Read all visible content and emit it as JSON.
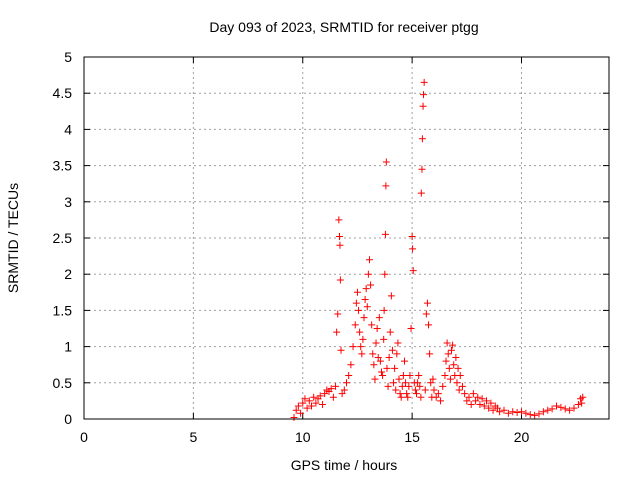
{
  "chart_data": {
    "type": "scatter",
    "title": "Day 093 of 2023, SRMTID for receiver ptgg",
    "xlabel": "GPS time / hours",
    "ylabel": "SRMTID / TECUs",
    "xlim": [
      0,
      24
    ],
    "ylim": [
      0,
      5
    ],
    "xticks": [
      0,
      5,
      10,
      15,
      20
    ],
    "yticks": [
      0,
      0.5,
      1,
      1.5,
      2,
      2.5,
      3,
      3.5,
      4,
      4.5,
      5
    ],
    "xtick_labels": [
      "0",
      "5",
      "10",
      "15",
      "20"
    ],
    "ytick_labels": [
      "0",
      "0.5",
      "1",
      "1.5",
      "2",
      "2.5",
      "3",
      "3.5",
      "4",
      "4.5",
      "5"
    ],
    "grid": true,
    "marker": "+",
    "color": "#ff0000",
    "series": [
      {
        "name": "ptgg",
        "points": [
          [
            9.6,
            0.02
          ],
          [
            9.7,
            0.12
          ],
          [
            9.8,
            0.18
          ],
          [
            9.9,
            0.08
          ],
          [
            10.0,
            0.22
          ],
          [
            10.1,
            0.28
          ],
          [
            10.2,
            0.15
          ],
          [
            10.3,
            0.25
          ],
          [
            10.4,
            0.18
          ],
          [
            10.5,
            0.3
          ],
          [
            10.6,
            0.22
          ],
          [
            10.7,
            0.28
          ],
          [
            10.8,
            0.32
          ],
          [
            10.9,
            0.2
          ],
          [
            11.0,
            0.35
          ],
          [
            11.1,
            0.4
          ],
          [
            11.2,
            0.38
          ],
          [
            11.3,
            0.42
          ],
          [
            11.4,
            0.3
          ],
          [
            11.5,
            0.45
          ],
          [
            11.55,
            1.2
          ],
          [
            11.6,
            1.45
          ],
          [
            11.65,
            2.75
          ],
          [
            11.68,
            2.52
          ],
          [
            11.7,
            2.4
          ],
          [
            11.72,
            1.92
          ],
          [
            11.75,
            0.95
          ],
          [
            11.8,
            0.35
          ],
          [
            11.9,
            0.4
          ],
          [
            12.0,
            0.5
          ],
          [
            12.1,
            0.6
          ],
          [
            12.2,
            0.75
          ],
          [
            12.3,
            1.0
          ],
          [
            12.4,
            1.3
          ],
          [
            12.45,
            1.6
          ],
          [
            12.5,
            1.75
          ],
          [
            12.55,
            1.5
          ],
          [
            12.6,
            1.2
          ],
          [
            12.65,
            1.0
          ],
          [
            12.7,
            0.9
          ],
          [
            12.75,
            1.1
          ],
          [
            12.8,
            1.4
          ],
          [
            12.85,
            1.65
          ],
          [
            12.9,
            1.8
          ],
          [
            12.95,
            1.55
          ],
          [
            13.0,
            2.0
          ],
          [
            13.05,
            2.2
          ],
          [
            13.1,
            1.85
          ],
          [
            13.15,
            1.3
          ],
          [
            13.2,
            0.9
          ],
          [
            13.25,
            0.75
          ],
          [
            13.3,
            0.55
          ],
          [
            13.35,
            1.05
          ],
          [
            13.4,
            1.25
          ],
          [
            13.45,
            0.85
          ],
          [
            13.5,
            1.4
          ],
          [
            13.55,
            0.8
          ],
          [
            13.6,
            0.65
          ],
          [
            13.65,
            0.6
          ],
          [
            13.7,
            1.1
          ],
          [
            13.72,
            1.5
          ],
          [
            13.75,
            2.0
          ],
          [
            13.78,
            2.55
          ],
          [
            13.8,
            3.22
          ],
          [
            13.82,
            3.55
          ],
          [
            13.85,
            0.7
          ],
          [
            13.9,
            0.45
          ],
          [
            13.95,
            0.85
          ],
          [
            14.0,
            1.2
          ],
          [
            14.05,
            1.7
          ],
          [
            14.1,
            0.95
          ],
          [
            14.15,
            0.5
          ],
          [
            14.2,
            0.7
          ],
          [
            14.25,
            0.4
          ],
          [
            14.3,
            0.9
          ],
          [
            14.35,
            1.05
          ],
          [
            14.4,
            0.55
          ],
          [
            14.45,
            0.35
          ],
          [
            14.5,
            0.3
          ],
          [
            14.55,
            0.45
          ],
          [
            14.6,
            0.6
          ],
          [
            14.65,
            0.8
          ],
          [
            14.7,
            0.5
          ],
          [
            14.75,
            0.35
          ],
          [
            14.8,
            0.3
          ],
          [
            14.85,
            0.45
          ],
          [
            14.9,
            0.6
          ],
          [
            14.95,
            1.25
          ],
          [
            15.0,
            2.52
          ],
          [
            15.02,
            2.35
          ],
          [
            15.05,
            2.05
          ],
          [
            15.1,
            0.5
          ],
          [
            15.15,
            0.4
          ],
          [
            15.2,
            0.35
          ],
          [
            15.25,
            0.5
          ],
          [
            15.3,
            0.6
          ],
          [
            15.35,
            0.45
          ],
          [
            15.4,
            0.3
          ],
          [
            15.42,
            3.12
          ],
          [
            15.45,
            3.45
          ],
          [
            15.47,
            3.87
          ],
          [
            15.5,
            4.32
          ],
          [
            15.52,
            4.48
          ],
          [
            15.55,
            4.65
          ],
          [
            15.6,
            0.4
          ],
          [
            15.65,
            1.45
          ],
          [
            15.7,
            1.6
          ],
          [
            15.75,
            1.3
          ],
          [
            15.8,
            0.9
          ],
          [
            15.85,
            0.5
          ],
          [
            15.9,
            0.3
          ],
          [
            15.95,
            0.55
          ],
          [
            16.0,
            0.4
          ],
          [
            16.1,
            0.3
          ],
          [
            16.2,
            0.35
          ],
          [
            16.3,
            0.25
          ],
          [
            16.4,
            0.45
          ],
          [
            16.5,
            0.6
          ],
          [
            16.55,
            0.8
          ],
          [
            16.6,
            1.05
          ],
          [
            16.65,
            0.9
          ],
          [
            16.7,
            0.7
          ],
          [
            16.75,
            0.55
          ],
          [
            16.8,
            0.95
          ],
          [
            16.85,
            1.02
          ],
          [
            16.9,
            0.75
          ],
          [
            16.95,
            0.6
          ],
          [
            17.0,
            0.85
          ],
          [
            17.05,
            0.5
          ],
          [
            17.1,
            0.7
          ],
          [
            17.15,
            0.4
          ],
          [
            17.2,
            0.6
          ],
          [
            17.3,
            0.45
          ],
          [
            17.4,
            0.35
          ],
          [
            17.5,
            0.25
          ],
          [
            17.6,
            0.3
          ],
          [
            17.7,
            0.2
          ],
          [
            17.8,
            0.35
          ],
          [
            17.9,
            0.25
          ],
          [
            18.0,
            0.3
          ],
          [
            18.1,
            0.2
          ],
          [
            18.2,
            0.28
          ],
          [
            18.3,
            0.18
          ],
          [
            18.4,
            0.25
          ],
          [
            18.5,
            0.15
          ],
          [
            18.6,
            0.22
          ],
          [
            18.7,
            0.12
          ],
          [
            18.8,
            0.18
          ],
          [
            18.9,
            0.15
          ],
          [
            19.0,
            0.1
          ],
          [
            19.2,
            0.12
          ],
          [
            19.4,
            0.08
          ],
          [
            19.6,
            0.1
          ],
          [
            19.8,
            0.09
          ],
          [
            20.0,
            0.1
          ],
          [
            20.2,
            0.08
          ],
          [
            20.4,
            0.06
          ],
          [
            20.6,
            0.05
          ],
          [
            20.8,
            0.07
          ],
          [
            21.0,
            0.1
          ],
          [
            21.2,
            0.12
          ],
          [
            21.4,
            0.14
          ],
          [
            21.6,
            0.18
          ],
          [
            21.8,
            0.16
          ],
          [
            22.0,
            0.14
          ],
          [
            22.2,
            0.12
          ],
          [
            22.4,
            0.15
          ],
          [
            22.6,
            0.2
          ],
          [
            22.7,
            0.28
          ],
          [
            22.75,
            0.22
          ],
          [
            22.8,
            0.3
          ]
        ]
      }
    ]
  }
}
